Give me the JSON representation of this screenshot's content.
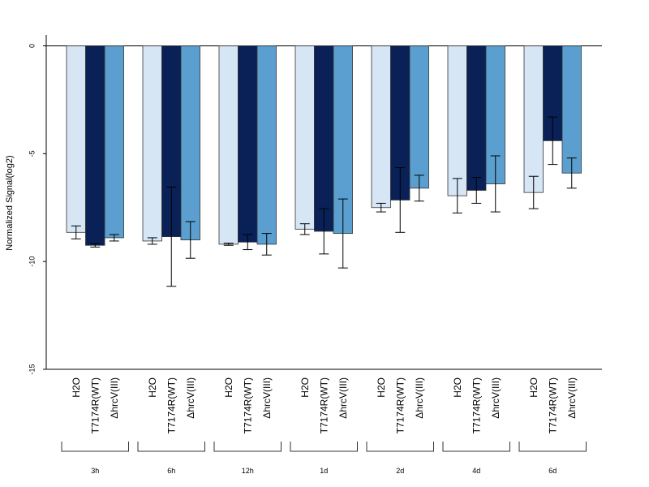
{
  "chart_data": {
    "type": "bar",
    "title": "",
    "xlabel": "",
    "ylabel": "Normalized Signal(log2)",
    "ylim": [
      -15,
      0.5
    ],
    "yticks": [
      0,
      -5,
      -10,
      -15
    ],
    "yticklabels": [
      "0",
      "-5",
      "-10",
      "-15"
    ],
    "groups": [
      "3h",
      "6h",
      "12h",
      "1d",
      "2d",
      "4d",
      "6d"
    ],
    "series": [
      {
        "label": "H2O",
        "color": "#d6e6f5",
        "values": [
          -8.65,
          -9.05,
          -9.2,
          -8.5,
          -7.5,
          -6.95,
          -6.8
        ],
        "errors": [
          0.3,
          0.15,
          0.05,
          0.25,
          0.2,
          0.8,
          0.75
        ]
      },
      {
        "label": "T7174R(WT)",
        "color": "#0a2157",
        "values": [
          -9.25,
          -8.85,
          -9.1,
          -8.6,
          -7.15,
          -6.7,
          -4.4
        ],
        "errors": [
          0.08,
          2.3,
          0.35,
          1.05,
          1.5,
          0.6,
          1.1
        ]
      },
      {
        "label": "ΔhrcV(III)",
        "color": "#5a9fcf",
        "values": [
          -8.9,
          -9.0,
          -9.2,
          -8.7,
          -6.6,
          -6.4,
          -5.9
        ],
        "errors": [
          0.15,
          0.85,
          0.5,
          1.6,
          0.6,
          1.3,
          0.7
        ]
      }
    ]
  }
}
